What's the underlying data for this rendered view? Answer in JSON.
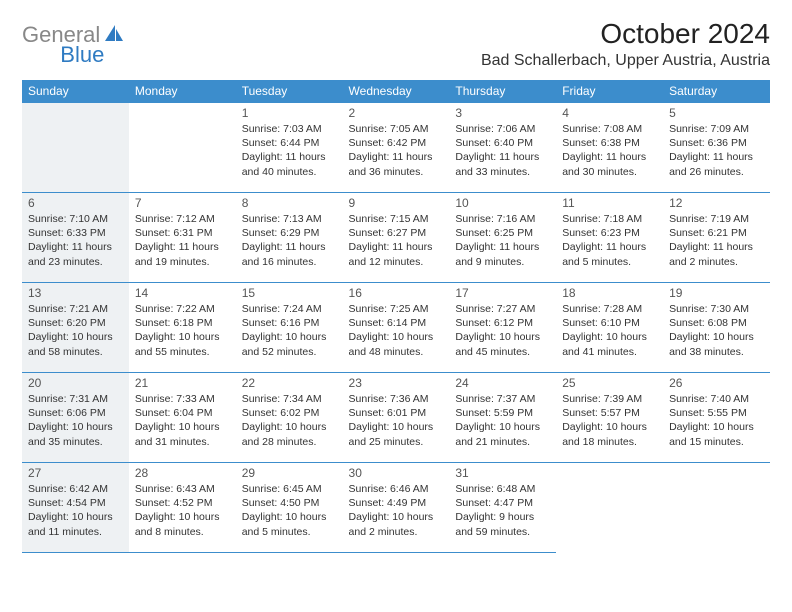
{
  "logo": {
    "part1": "General",
    "part2": "Blue",
    "part2_color": "#2f7bc2",
    "icon_color": "#2f7bc2"
  },
  "title": "October 2024",
  "location": "Bad Schallerbach, Upper Austria, Austria",
  "header_bg": "#3c8dcc",
  "shaded_bg": "#eef1f3",
  "border_color": "#3c8dcc",
  "weekdays": [
    "Sunday",
    "Monday",
    "Tuesday",
    "Wednesday",
    "Thursday",
    "Friday",
    "Saturday"
  ],
  "weeks": [
    [
      null,
      null,
      {
        "d": "1",
        "sr": "7:03 AM",
        "ss": "6:44 PM",
        "dl": "11 hours and 40 minutes."
      },
      {
        "d": "2",
        "sr": "7:05 AM",
        "ss": "6:42 PM",
        "dl": "11 hours and 36 minutes."
      },
      {
        "d": "3",
        "sr": "7:06 AM",
        "ss": "6:40 PM",
        "dl": "11 hours and 33 minutes."
      },
      {
        "d": "4",
        "sr": "7:08 AM",
        "ss": "6:38 PM",
        "dl": "11 hours and 30 minutes."
      },
      {
        "d": "5",
        "sr": "7:09 AM",
        "ss": "6:36 PM",
        "dl": "11 hours and 26 minutes."
      }
    ],
    [
      {
        "d": "6",
        "sr": "7:10 AM",
        "ss": "6:33 PM",
        "dl": "11 hours and 23 minutes."
      },
      {
        "d": "7",
        "sr": "7:12 AM",
        "ss": "6:31 PM",
        "dl": "11 hours and 19 minutes."
      },
      {
        "d": "8",
        "sr": "7:13 AM",
        "ss": "6:29 PM",
        "dl": "11 hours and 16 minutes."
      },
      {
        "d": "9",
        "sr": "7:15 AM",
        "ss": "6:27 PM",
        "dl": "11 hours and 12 minutes."
      },
      {
        "d": "10",
        "sr": "7:16 AM",
        "ss": "6:25 PM",
        "dl": "11 hours and 9 minutes."
      },
      {
        "d": "11",
        "sr": "7:18 AM",
        "ss": "6:23 PM",
        "dl": "11 hours and 5 minutes."
      },
      {
        "d": "12",
        "sr": "7:19 AM",
        "ss": "6:21 PM",
        "dl": "11 hours and 2 minutes."
      }
    ],
    [
      {
        "d": "13",
        "sr": "7:21 AM",
        "ss": "6:20 PM",
        "dl": "10 hours and 58 minutes."
      },
      {
        "d": "14",
        "sr": "7:22 AM",
        "ss": "6:18 PM",
        "dl": "10 hours and 55 minutes."
      },
      {
        "d": "15",
        "sr": "7:24 AM",
        "ss": "6:16 PM",
        "dl": "10 hours and 52 minutes."
      },
      {
        "d": "16",
        "sr": "7:25 AM",
        "ss": "6:14 PM",
        "dl": "10 hours and 48 minutes."
      },
      {
        "d": "17",
        "sr": "7:27 AM",
        "ss": "6:12 PM",
        "dl": "10 hours and 45 minutes."
      },
      {
        "d": "18",
        "sr": "7:28 AM",
        "ss": "6:10 PM",
        "dl": "10 hours and 41 minutes."
      },
      {
        "d": "19",
        "sr": "7:30 AM",
        "ss": "6:08 PM",
        "dl": "10 hours and 38 minutes."
      }
    ],
    [
      {
        "d": "20",
        "sr": "7:31 AM",
        "ss": "6:06 PM",
        "dl": "10 hours and 35 minutes."
      },
      {
        "d": "21",
        "sr": "7:33 AM",
        "ss": "6:04 PM",
        "dl": "10 hours and 31 minutes."
      },
      {
        "d": "22",
        "sr": "7:34 AM",
        "ss": "6:02 PM",
        "dl": "10 hours and 28 minutes."
      },
      {
        "d": "23",
        "sr": "7:36 AM",
        "ss": "6:01 PM",
        "dl": "10 hours and 25 minutes."
      },
      {
        "d": "24",
        "sr": "7:37 AM",
        "ss": "5:59 PM",
        "dl": "10 hours and 21 minutes."
      },
      {
        "d": "25",
        "sr": "7:39 AM",
        "ss": "5:57 PM",
        "dl": "10 hours and 18 minutes."
      },
      {
        "d": "26",
        "sr": "7:40 AM",
        "ss": "5:55 PM",
        "dl": "10 hours and 15 minutes."
      }
    ],
    [
      {
        "d": "27",
        "sr": "6:42 AM",
        "ss": "4:54 PM",
        "dl": "10 hours and 11 minutes."
      },
      {
        "d": "28",
        "sr": "6:43 AM",
        "ss": "4:52 PM",
        "dl": "10 hours and 8 minutes."
      },
      {
        "d": "29",
        "sr": "6:45 AM",
        "ss": "4:50 PM",
        "dl": "10 hours and 5 minutes."
      },
      {
        "d": "30",
        "sr": "6:46 AM",
        "ss": "4:49 PM",
        "dl": "10 hours and 2 minutes."
      },
      {
        "d": "31",
        "sr": "6:48 AM",
        "ss": "4:47 PM",
        "dl": "9 hours and 59 minutes."
      },
      null,
      null
    ]
  ],
  "labels": {
    "sunrise": "Sunrise:",
    "sunset": "Sunset:",
    "daylight": "Daylight:"
  }
}
